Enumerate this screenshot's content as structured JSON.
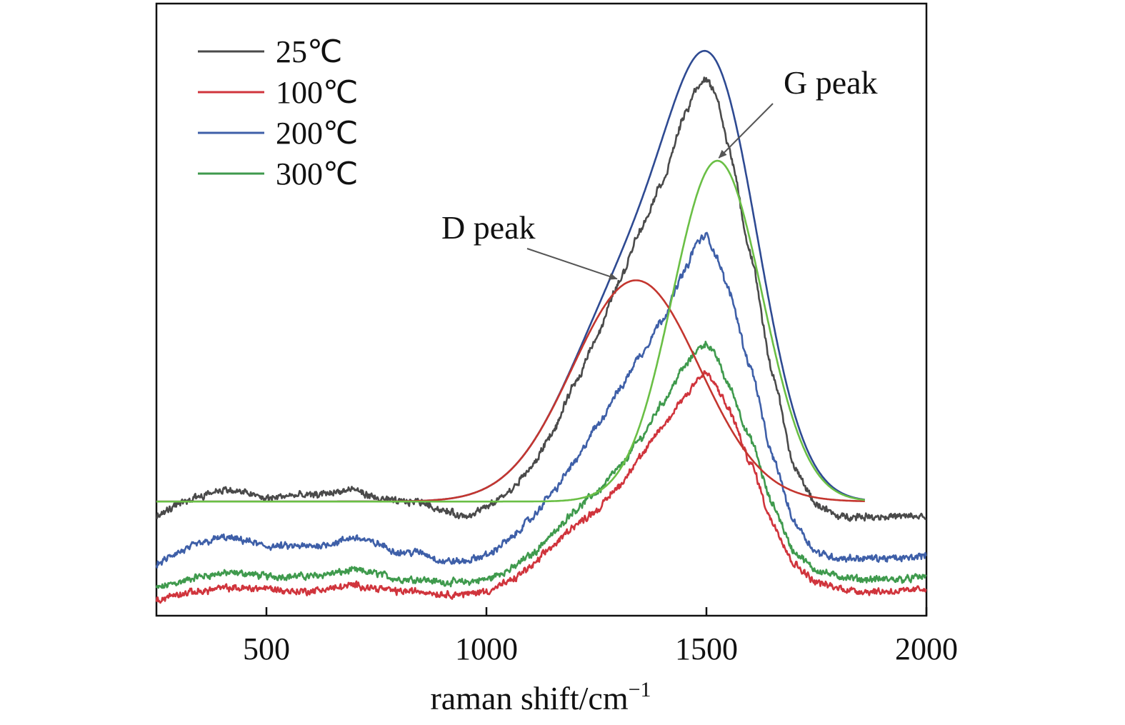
{
  "chart_data": {
    "type": "line",
    "xlabel": "raman shift/cm",
    "xlabel_superscript": "−1",
    "ylabel": "",
    "xlim": [
      250,
      2000
    ],
    "ylim": [
      0,
      100
    ],
    "x_ticks": [
      500,
      1000,
      1500,
      2000
    ],
    "x_tick_labels": [
      "500",
      "1000",
      "1500",
      "2000"
    ],
    "y_ticks_shown": false,
    "grid": false,
    "legend_position": "top-left",
    "legend": [
      {
        "label": "25℃",
        "color": "#4a4a4a"
      },
      {
        "label": "100℃",
        "color": "#d0343c"
      },
      {
        "label": "200℃",
        "color": "#3e5fa8"
      },
      {
        "label": "300℃",
        "color": "#3f9a4d"
      }
    ],
    "series": [
      {
        "name": "25℃",
        "color": "#4a4a4a",
        "points": [
          [
            250,
            16
          ],
          [
            300,
            18
          ],
          [
            350,
            19.5
          ],
          [
            400,
            20.5
          ],
          [
            450,
            20
          ],
          [
            500,
            19
          ],
          [
            550,
            19.5
          ],
          [
            600,
            19.5
          ],
          [
            650,
            20
          ],
          [
            700,
            20.5
          ],
          [
            750,
            19
          ],
          [
            800,
            18.5
          ],
          [
            850,
            18.5
          ],
          [
            900,
            17
          ],
          [
            950,
            16
          ],
          [
            1000,
            17.5
          ],
          [
            1050,
            20
          ],
          [
            1100,
            24
          ],
          [
            1150,
            30
          ],
          [
            1200,
            38
          ],
          [
            1250,
            46
          ],
          [
            1300,
            55
          ],
          [
            1350,
            64
          ],
          [
            1400,
            72
          ],
          [
            1450,
            83
          ],
          [
            1480,
            88
          ],
          [
            1500,
            89
          ],
          [
            1520,
            87
          ],
          [
            1550,
            78
          ],
          [
            1600,
            60
          ],
          [
            1650,
            40
          ],
          [
            1700,
            24
          ],
          [
            1750,
            18
          ],
          [
            1800,
            16
          ],
          [
            1850,
            16
          ],
          [
            1900,
            16
          ],
          [
            1950,
            16
          ],
          [
            2000,
            16
          ]
        ]
      },
      {
        "name": "100℃",
        "color": "#d0343c",
        "points": [
          [
            250,
            2
          ],
          [
            300,
            3
          ],
          [
            350,
            3.5
          ],
          [
            400,
            4
          ],
          [
            450,
            4
          ],
          [
            500,
            4
          ],
          [
            550,
            3.5
          ],
          [
            600,
            3.5
          ],
          [
            650,
            4
          ],
          [
            700,
            4.5
          ],
          [
            750,
            4
          ],
          [
            800,
            3.5
          ],
          [
            850,
            3.5
          ],
          [
            900,
            3
          ],
          [
            950,
            3
          ],
          [
            1000,
            3.5
          ],
          [
            1050,
            5
          ],
          [
            1100,
            7.5
          ],
          [
            1150,
            11
          ],
          [
            1200,
            14.5
          ],
          [
            1250,
            17
          ],
          [
            1300,
            21
          ],
          [
            1350,
            26
          ],
          [
            1400,
            31
          ],
          [
            1450,
            36
          ],
          [
            1480,
            39
          ],
          [
            1500,
            40
          ],
          [
            1520,
            38
          ],
          [
            1550,
            34
          ],
          [
            1600,
            25
          ],
          [
            1650,
            15
          ],
          [
            1700,
            8
          ],
          [
            1750,
            5
          ],
          [
            1800,
            4
          ],
          [
            1850,
            3.5
          ],
          [
            1900,
            3.5
          ],
          [
            1950,
            3.5
          ],
          [
            2000,
            4
          ]
        ]
      },
      {
        "name": "200℃",
        "color": "#3e5fa8",
        "points": [
          [
            250,
            8
          ],
          [
            300,
            10
          ],
          [
            350,
            11.5
          ],
          [
            400,
            12.5
          ],
          [
            450,
            12
          ],
          [
            500,
            11
          ],
          [
            550,
            11
          ],
          [
            600,
            11
          ],
          [
            650,
            11.5
          ],
          [
            700,
            12.5
          ],
          [
            750,
            11.5
          ],
          [
            800,
            10
          ],
          [
            850,
            10
          ],
          [
            900,
            8.5
          ],
          [
            950,
            8.5
          ],
          [
            1000,
            9.5
          ],
          [
            1050,
            12
          ],
          [
            1100,
            15.5
          ],
          [
            1150,
            20
          ],
          [
            1200,
            25
          ],
          [
            1250,
            31
          ],
          [
            1300,
            37
          ],
          [
            1350,
            43
          ],
          [
            1400,
            49
          ],
          [
            1450,
            57
          ],
          [
            1480,
            62
          ],
          [
            1500,
            63
          ],
          [
            1520,
            60
          ],
          [
            1550,
            54
          ],
          [
            1600,
            41
          ],
          [
            1650,
            26
          ],
          [
            1700,
            15
          ],
          [
            1750,
            10
          ],
          [
            1800,
            9
          ],
          [
            1850,
            9
          ],
          [
            1900,
            9
          ],
          [
            1950,
            9
          ],
          [
            2000,
            9.5
          ]
        ]
      },
      {
        "name": "300℃",
        "color": "#3f9a4d",
        "points": [
          [
            250,
            4
          ],
          [
            300,
            5
          ],
          [
            350,
            6
          ],
          [
            400,
            6.5
          ],
          [
            450,
            6.5
          ],
          [
            500,
            6
          ],
          [
            550,
            6
          ],
          [
            600,
            6
          ],
          [
            650,
            6.5
          ],
          [
            700,
            7
          ],
          [
            750,
            6.5
          ],
          [
            800,
            5.5
          ],
          [
            850,
            5.5
          ],
          [
            900,
            5
          ],
          [
            950,
            5
          ],
          [
            1000,
            5.5
          ],
          [
            1050,
            7
          ],
          [
            1100,
            9.5
          ],
          [
            1150,
            13
          ],
          [
            1200,
            17
          ],
          [
            1250,
            20
          ],
          [
            1300,
            24
          ],
          [
            1350,
            29
          ],
          [
            1400,
            35
          ],
          [
            1450,
            41
          ],
          [
            1480,
            44
          ],
          [
            1500,
            45
          ],
          [
            1520,
            43
          ],
          [
            1550,
            38
          ],
          [
            1600,
            29
          ],
          [
            1650,
            18
          ],
          [
            1700,
            10
          ],
          [
            1750,
            7
          ],
          [
            1800,
            6
          ],
          [
            1850,
            5.5
          ],
          [
            1900,
            5.5
          ],
          [
            1950,
            5.5
          ],
          [
            2000,
            6
          ]
        ]
      }
    ],
    "fits": [
      {
        "name": "D peak fit",
        "color": "#c4362f",
        "baseline": 18.5,
        "center": 1340,
        "amplitude": 37,
        "fwhm": 340
      },
      {
        "name": "G peak fit",
        "color": "#6abf45",
        "baseline": 18.5,
        "center": 1525,
        "amplitude": 57,
        "fwhm": 240
      },
      {
        "name": "sum fit",
        "color": "#2e4a92",
        "baseline": 18.5
      }
    ],
    "annotations": [
      {
        "text": "D peak",
        "target": [
          1300,
          55.5
        ]
      },
      {
        "text": "G peak",
        "target": [
          1525,
          75.5
        ]
      }
    ]
  }
}
